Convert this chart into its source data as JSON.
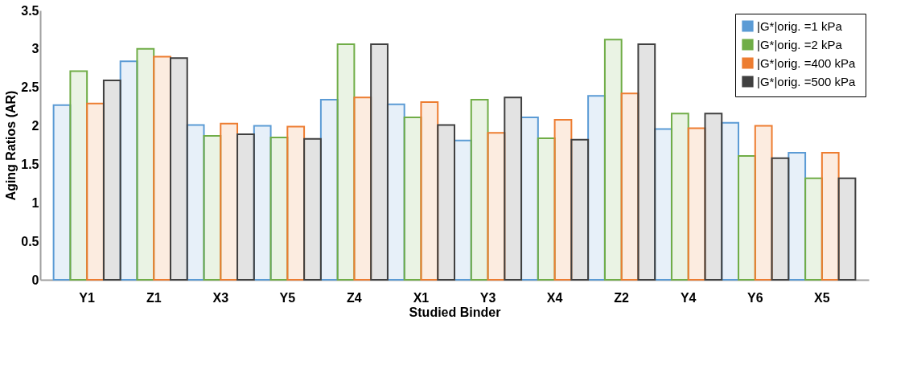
{
  "chart_data": {
    "type": "bar",
    "xlabel": "Studied Binder",
    "ylabel": "Aging Ratios (AR)",
    "categories": [
      "Y1",
      "Z1",
      "X3",
      "Y5",
      "Z4",
      "X1",
      "Y3",
      "X4",
      "Z2",
      "Y4",
      "Y6",
      "X5"
    ],
    "series": [
      {
        "name": "|G*|orig. =1  kPa",
        "color": "#5b9bd5",
        "values": [
          2.27,
          2.84,
          2.01,
          2.0,
          2.34,
          2.28,
          1.81,
          2.11,
          2.39,
          1.96,
          2.04,
          1.65
        ]
      },
      {
        "name": "|G*|orig. =2  kPa",
        "color": "#70ad47",
        "values": [
          2.71,
          3.0,
          1.87,
          1.85,
          3.06,
          2.11,
          2.34,
          1.84,
          3.12,
          2.16,
          1.61,
          1.32
        ]
      },
      {
        "name": "|G*|orig. =400  kPa",
        "color": "#ed7d31",
        "values": [
          2.29,
          2.9,
          2.03,
          1.99,
          2.37,
          2.31,
          1.91,
          2.08,
          2.42,
          1.97,
          2.0,
          1.65
        ]
      },
      {
        "name": "|G*|orig. =500 kPa",
        "color": "#404040",
        "values": [
          2.59,
          2.88,
          1.89,
          1.83,
          3.06,
          2.01,
          2.37,
          1.82,
          3.06,
          2.16,
          1.58,
          1.32
        ]
      }
    ],
    "ylim": [
      0,
      3.5
    ],
    "yticks": [
      0,
      0.5,
      1,
      1.5,
      2,
      2.5,
      3,
      3.5
    ],
    "grid": false,
    "legend": "top right"
  }
}
